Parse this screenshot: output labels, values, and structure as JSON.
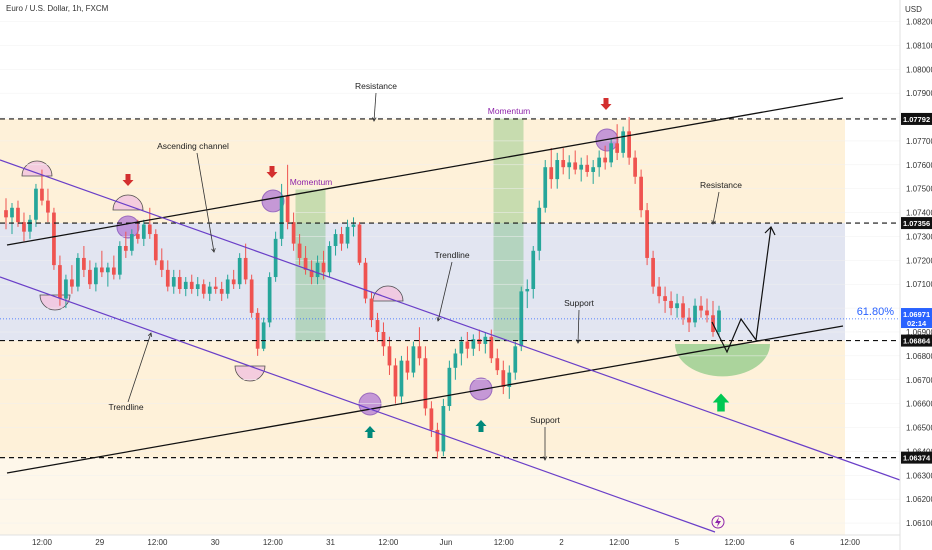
{
  "header": {
    "symbol": "Euro / U.S. Dollar, 1h, FXCM"
  },
  "axis": {
    "currency": "USD"
  },
  "chart_data": {
    "type": "candlestick",
    "ylim": [
      1.0605,
      1.0829
    ],
    "price_ticks": [
      1.061,
      1.062,
      1.063,
      1.064,
      1.065,
      1.066,
      1.067,
      1.068,
      1.069,
      1.07,
      1.071,
      1.072,
      1.073,
      1.074,
      1.075,
      1.076,
      1.077,
      1.078,
      1.079,
      1.08,
      1.081,
      1.082
    ],
    "time_ticks": [
      "12:00",
      "29",
      "12:00",
      "30",
      "12:00",
      "31",
      "12:00",
      "Jun",
      "12:00",
      "2",
      "12:00",
      "5",
      "12:00",
      "6",
      "12:00"
    ],
    "levels": [
      {
        "price": 1.07792,
        "label": "1.07792"
      },
      {
        "price": 1.07356,
        "label": "1.07356"
      },
      {
        "price": 1.06864,
        "label": "1.06864"
      },
      {
        "price": 1.06374,
        "label": "1.06374"
      }
    ],
    "current_price": {
      "label": "1.06971",
      "countdown": "02:14",
      "value": 1.06971
    },
    "fib_label": "61.80%",
    "fib_price": 1.06955,
    "annotations": [
      "Resistance",
      "Ascending channel",
      "Momentum",
      "Momentum",
      "Trendline",
      "Support",
      "Resistance",
      "Trendline",
      "Support"
    ],
    "candles": [
      [
        1.0741,
        1.0746,
        1.0733,
        1.0738
      ],
      [
        1.0738,
        1.0744,
        1.0731,
        1.0742
      ],
      [
        1.0742,
        1.0745,
        1.0734,
        1.0736
      ],
      [
        1.0736,
        1.074,
        1.0728,
        1.0732
      ],
      [
        1.0732,
        1.0739,
        1.0729,
        1.0737
      ],
      [
        1.0737,
        1.0752,
        1.0734,
        1.075
      ],
      [
        1.075,
        1.0758,
        1.0743,
        1.0745
      ],
      [
        1.0745,
        1.075,
        1.0736,
        1.074
      ],
      [
        1.074,
        1.0742,
        1.0716,
        1.0718
      ],
      [
        1.0718,
        1.0722,
        1.0701,
        1.0704
      ],
      [
        1.0704,
        1.0714,
        1.07,
        1.0712
      ],
      [
        1.0712,
        1.0718,
        1.0706,
        1.0709
      ],
      [
        1.0709,
        1.0723,
        1.0707,
        1.0721
      ],
      [
        1.0721,
        1.0726,
        1.0713,
        1.0716
      ],
      [
        1.0716,
        1.072,
        1.0708,
        1.071
      ],
      [
        1.071,
        1.0719,
        1.0707,
        1.0717
      ],
      [
        1.0717,
        1.0724,
        1.0713,
        1.0715
      ],
      [
        1.0715,
        1.0719,
        1.0709,
        1.0717
      ],
      [
        1.0717,
        1.0722,
        1.0712,
        1.0714
      ],
      [
        1.0714,
        1.0728,
        1.0712,
        1.0726
      ],
      [
        1.0726,
        1.0732,
        1.0721,
        1.0724
      ],
      [
        1.0724,
        1.0733,
        1.0722,
        1.0731
      ],
      [
        1.0731,
        1.0737,
        1.0727,
        1.0729
      ],
      [
        1.0729,
        1.0737,
        1.0726,
        1.0735
      ],
      [
        1.0735,
        1.0742,
        1.0729,
        1.0731
      ],
      [
        1.0731,
        1.0733,
        1.0718,
        1.072
      ],
      [
        1.072,
        1.0725,
        1.0713,
        1.0716
      ],
      [
        1.0716,
        1.072,
        1.0707,
        1.0709
      ],
      [
        1.0709,
        1.0716,
        1.0706,
        1.0713
      ],
      [
        1.0713,
        1.0716,
        1.0706,
        1.0708
      ],
      [
        1.0708,
        1.0713,
        1.0705,
        1.0711
      ],
      [
        1.0711,
        1.0714,
        1.0706,
        1.0708
      ],
      [
        1.0708,
        1.0713,
        1.0705,
        1.071
      ],
      [
        1.071,
        1.0712,
        1.0704,
        1.0706
      ],
      [
        1.0706,
        1.0711,
        1.0703,
        1.0709
      ],
      [
        1.0709,
        1.0713,
        1.0706,
        1.0708
      ],
      [
        1.0708,
        1.0711,
        1.0703,
        1.0706
      ],
      [
        1.0706,
        1.0714,
        1.0704,
        1.0712
      ],
      [
        1.0712,
        1.0716,
        1.0708,
        1.071
      ],
      [
        1.071,
        1.0723,
        1.0708,
        1.0721
      ],
      [
        1.0721,
        1.0727,
        1.071,
        1.0712
      ],
      [
        1.0712,
        1.0714,
        1.0696,
        1.0698
      ],
      [
        1.0698,
        1.07,
        1.068,
        1.0683
      ],
      [
        1.0683,
        1.0696,
        1.0682,
        1.0694
      ],
      [
        1.0694,
        1.0715,
        1.0692,
        1.0713
      ],
      [
        1.0713,
        1.0732,
        1.0711,
        1.0729
      ],
      [
        1.0729,
        1.0752,
        1.0726,
        1.0747
      ],
      [
        1.0747,
        1.076,
        1.0733,
        1.0736
      ],
      [
        1.0736,
        1.074,
        1.0724,
        1.0727
      ],
      [
        1.0727,
        1.0731,
        1.0718,
        1.0721
      ],
      [
        1.0721,
        1.0726,
        1.0714,
        1.0716
      ],
      [
        1.0716,
        1.072,
        1.071,
        1.0713
      ],
      [
        1.0713,
        1.0722,
        1.071,
        1.0719
      ],
      [
        1.0719,
        1.0724,
        1.0712,
        1.0715
      ],
      [
        1.0715,
        1.0728,
        1.0713,
        1.0726
      ],
      [
        1.0726,
        1.0733,
        1.0722,
        1.0731
      ],
      [
        1.0731,
        1.0734,
        1.0724,
        1.0727
      ],
      [
        1.0727,
        1.0737,
        1.0725,
        1.0734
      ],
      [
        1.0734,
        1.0738,
        1.073,
        1.0735
      ],
      [
        1.0735,
        1.0736,
        1.0718,
        1.0719
      ],
      [
        1.0719,
        1.0721,
        1.0702,
        1.0704
      ],
      [
        1.0704,
        1.0707,
        1.0692,
        1.0695
      ],
      [
        1.0695,
        1.0698,
        1.0686,
        1.069
      ],
      [
        1.069,
        1.0694,
        1.068,
        1.0684
      ],
      [
        1.0684,
        1.0688,
        1.0672,
        1.0676
      ],
      [
        1.0676,
        1.0679,
        1.066,
        1.0663
      ],
      [
        1.0663,
        1.068,
        1.066,
        1.0678
      ],
      [
        1.0678,
        1.0684,
        1.067,
        1.0673
      ],
      [
        1.0673,
        1.0686,
        1.0671,
        1.0684
      ],
      [
        1.0684,
        1.0692,
        1.0676,
        1.0679
      ],
      [
        1.0679,
        1.0684,
        1.0655,
        1.0658
      ],
      [
        1.0658,
        1.0661,
        1.0646,
        1.0649
      ],
      [
        1.0649,
        1.0652,
        1.0637,
        1.064
      ],
      [
        1.064,
        1.0662,
        1.0638,
        1.0659
      ],
      [
        1.0659,
        1.0678,
        1.0657,
        1.0675
      ],
      [
        1.0675,
        1.0683,
        1.067,
        1.0681
      ],
      [
        1.0681,
        1.0688,
        1.0676,
        1.0686
      ],
      [
        1.0686,
        1.069,
        1.0679,
        1.0683
      ],
      [
        1.0683,
        1.0689,
        1.068,
        1.0687
      ],
      [
        1.0687,
        1.0691,
        1.0682,
        1.0685
      ],
      [
        1.0685,
        1.069,
        1.0681,
        1.0688
      ],
      [
        1.0688,
        1.0691,
        1.0677,
        1.0679
      ],
      [
        1.0679,
        1.0683,
        1.0672,
        1.0674
      ],
      [
        1.0674,
        1.0678,
        1.0664,
        1.0667
      ],
      [
        1.0667,
        1.0676,
        1.0662,
        1.0673
      ],
      [
        1.0673,
        1.0686,
        1.067,
        1.0684
      ],
      [
        1.0684,
        1.0709,
        1.0682,
        1.0707
      ],
      [
        1.0707,
        1.0712,
        1.07,
        1.0708
      ],
      [
        1.0708,
        1.0726,
        1.0704,
        1.0724
      ],
      [
        1.0724,
        1.0745,
        1.072,
        1.0742
      ],
      [
        1.0742,
        1.0762,
        1.074,
        1.0759
      ],
      [
        1.0759,
        1.0767,
        1.075,
        1.0754
      ],
      [
        1.0754,
        1.0765,
        1.075,
        1.0762
      ],
      [
        1.0762,
        1.0767,
        1.0756,
        1.0759
      ],
      [
        1.0759,
        1.0764,
        1.0754,
        1.0761
      ],
      [
        1.0761,
        1.0766,
        1.0756,
        1.0758
      ],
      [
        1.0758,
        1.0763,
        1.0753,
        1.076
      ],
      [
        1.076,
        1.0764,
        1.0755,
        1.0757
      ],
      [
        1.0757,
        1.0762,
        1.0752,
        1.0759
      ],
      [
        1.0759,
        1.0766,
        1.0755,
        1.0763
      ],
      [
        1.0763,
        1.0768,
        1.0758,
        1.0761
      ],
      [
        1.0761,
        1.0771,
        1.0759,
        1.0769
      ],
      [
        1.0769,
        1.0777,
        1.0762,
        1.0765
      ],
      [
        1.0765,
        1.0776,
        1.0763,
        1.0774
      ],
      [
        1.0774,
        1.078,
        1.076,
        1.0763
      ],
      [
        1.0763,
        1.0766,
        1.0752,
        1.0755
      ],
      [
        1.0755,
        1.0758,
        1.0738,
        1.0741
      ],
      [
        1.0741,
        1.0744,
        1.0718,
        1.0721
      ],
      [
        1.0721,
        1.0724,
        1.0706,
        1.0709
      ],
      [
        1.0709,
        1.0713,
        1.0702,
        1.0705
      ],
      [
        1.0705,
        1.0709,
        1.0698,
        1.0703
      ],
      [
        1.0703,
        1.0707,
        1.0697,
        1.07
      ],
      [
        1.07,
        1.0706,
        1.0696,
        1.0702
      ],
      [
        1.0702,
        1.0705,
        1.0693,
        1.0696
      ],
      [
        1.0696,
        1.07,
        1.069,
        1.0694
      ],
      [
        1.0694,
        1.0704,
        1.0692,
        1.0701
      ],
      [
        1.0701,
        1.0705,
        1.0696,
        1.0699
      ],
      [
        1.0699,
        1.0704,
        1.0694,
        1.0697
      ],
      [
        1.0697,
        1.0703,
        1.0688,
        1.069
      ],
      [
        1.069,
        1.0701,
        1.0688,
        1.0699
      ]
    ]
  }
}
